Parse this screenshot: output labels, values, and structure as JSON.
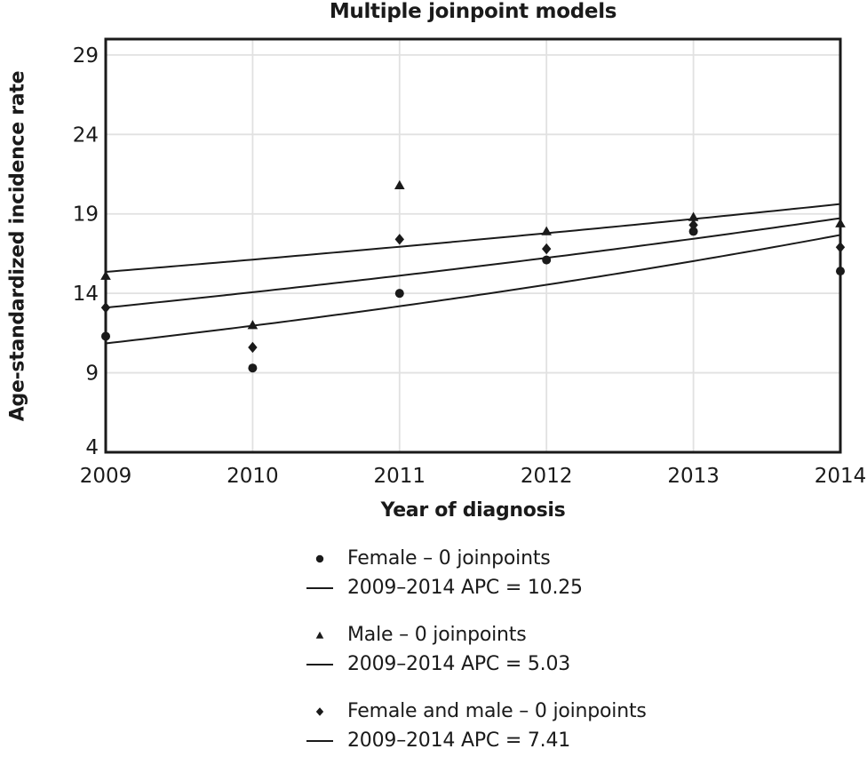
{
  "chart_data": {
    "type": "scatter",
    "title": "Multiple joinpoint models",
    "xlabel": "Year of diagnosis",
    "ylabel": "Age-standardized incidence rate",
    "x": [
      2009,
      2010,
      2011,
      2012,
      2013,
      2014
    ],
    "xlim": [
      2009,
      2014
    ],
    "ylim": [
      4,
      30
    ],
    "xticks": [
      "2009",
      "2010",
      "2011",
      "2012",
      "2013",
      "2014"
    ],
    "yticks": [
      29,
      24,
      19,
      14,
      9,
      4
    ],
    "grid": true,
    "legend_position": "bottom",
    "series": [
      {
        "id": "female",
        "label": "Female – 0 joinpoints",
        "marker": "circle",
        "observed": [
          11.3,
          9.3,
          14.0,
          16.1,
          17.9,
          15.4
        ],
        "trend": {
          "start_value": 10.85,
          "apc_percent": 10.25,
          "label": "2009–2014 APC = 10.25"
        }
      },
      {
        "id": "male",
        "label": "Male – 0 joinpoints",
        "marker": "triangle",
        "observed": [
          15.1,
          12.0,
          20.8,
          17.9,
          18.8,
          18.4
        ],
        "trend": {
          "start_value": 15.35,
          "apc_percent": 5.03,
          "label": "2009–2014 APC = 5.03"
        }
      },
      {
        "id": "female_and_male",
        "label": "Female and male – 0 joinpoints",
        "marker": "diamond",
        "observed": [
          13.1,
          10.6,
          17.4,
          16.8,
          18.3,
          16.9
        ],
        "trend": {
          "start_value": 13.1,
          "apc_percent": 7.41,
          "label": "2009–2014 APC = 7.41"
        }
      }
    ],
    "colors": {
      "ink": "#1a1a1a",
      "grid": "#e1e1e1",
      "background": "#ffffff"
    }
  }
}
